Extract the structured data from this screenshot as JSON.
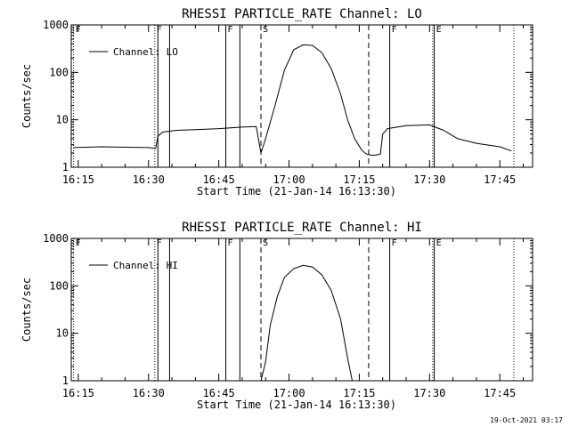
{
  "stamp": "19-Oct-2021 03:17",
  "chart_data": [
    {
      "type": "line",
      "title": "RHESSI PARTICLE_RATE Channel: LO",
      "xlabel": "Start Time (21-Jan-14 16:13:30)",
      "ylabel": "Counts/sec",
      "yscale": "log",
      "ylim": [
        1,
        1000
      ],
      "xlim": [
        "16:13:30",
        "17:52:00"
      ],
      "xticks": [
        "16:15",
        "16:30",
        "16:45",
        "17:00",
        "17:15",
        "17:30",
        "17:45"
      ],
      "yticks": [
        "1",
        "10",
        "100",
        "1000"
      ],
      "legend": "Channel: LO",
      "legend_position": "top-left",
      "flags": [
        {
          "label": "F",
          "time": "16:14:00",
          "style": "dotted"
        },
        {
          "label": "F",
          "time": "16:31:20",
          "style": "dotted"
        },
        {
          "label": "",
          "time": "16:32:00",
          "style": "solid"
        },
        {
          "label": "",
          "time": "16:34:30",
          "style": "solid"
        },
        {
          "label": "F",
          "time": "16:46:30",
          "style": "solid"
        },
        {
          "label": "",
          "time": "16:49:30",
          "style": "solid"
        },
        {
          "label": "S",
          "time": "16:54:00",
          "style": "dashed"
        },
        {
          "label": "",
          "time": "17:17:00",
          "style": "dashed"
        },
        {
          "label": "F",
          "time": "17:21:30",
          "style": "solid"
        },
        {
          "label": "E",
          "time": "17:31:00",
          "style": "solid"
        },
        {
          "label": "",
          "time": "17:30:40",
          "style": "dotted"
        },
        {
          "label": "",
          "time": "17:48:00",
          "style": "dotted"
        }
      ],
      "series": [
        {
          "x": [
            "16:14:00",
            "16:20:00",
            "16:30:00",
            "16:31:30",
            "16:32:00",
            "16:33:00",
            "16:36:00",
            "16:40:00",
            "16:45:00",
            "16:50:00",
            "16:53:00",
            "16:54:00",
            "16:55:00",
            "16:57:00",
            "16:59:00",
            "17:01:00",
            "17:03:00",
            "17:05:00",
            "17:07:00",
            "17:09:00",
            "17:11:00",
            "17:12:30",
            "17:14:00",
            "17:15:30",
            "17:16:30",
            "17:17:30",
            "17:18:30",
            "17:19:30",
            "17:20:00",
            "17:21:00",
            "17:25:00",
            "17:30:00",
            "17:33:00",
            "17:36:00",
            "17:40:00",
            "17:45:00",
            "17:47:30"
          ],
          "y": [
            2.6,
            2.7,
            2.6,
            2.5,
            4.5,
            5.5,
            6.0,
            6.2,
            6.5,
            7.0,
            7.2,
            2.0,
            4.0,
            20,
            110,
            300,
            380,
            370,
            260,
            120,
            35,
            10,
            4.0,
            2.3,
            1.9,
            1.8,
            1.8,
            1.9,
            5,
            6.5,
            7.5,
            7.8,
            6.0,
            4.0,
            3.2,
            2.7,
            2.2
          ]
        }
      ]
    },
    {
      "type": "line",
      "title": "RHESSI PARTICLE_RATE Channel: HI",
      "xlabel": "Start Time (21-Jan-14 16:13:30)",
      "ylabel": "Counts/sec",
      "yscale": "log",
      "ylim": [
        1,
        1000
      ],
      "xlim": [
        "16:13:30",
        "17:52:00"
      ],
      "xticks": [
        "16:15",
        "16:30",
        "16:45",
        "17:00",
        "17:15",
        "17:30",
        "17:45"
      ],
      "yticks": [
        "1",
        "10",
        "100",
        "1000"
      ],
      "legend": "Channel: HI",
      "legend_position": "top-left",
      "flags": [
        {
          "label": "F",
          "time": "16:14:00",
          "style": "dotted"
        },
        {
          "label": "F",
          "time": "16:31:20",
          "style": "dotted"
        },
        {
          "label": "",
          "time": "16:32:00",
          "style": "solid"
        },
        {
          "label": "",
          "time": "16:34:30",
          "style": "solid"
        },
        {
          "label": "F",
          "time": "16:46:30",
          "style": "solid"
        },
        {
          "label": "",
          "time": "16:49:30",
          "style": "solid"
        },
        {
          "label": "S",
          "time": "16:54:00",
          "style": "dashed"
        },
        {
          "label": "",
          "time": "17:17:00",
          "style": "dashed"
        },
        {
          "label": "F",
          "time": "17:21:30",
          "style": "solid"
        },
        {
          "label": "E",
          "time": "17:31:00",
          "style": "solid"
        },
        {
          "label": "",
          "time": "17:30:40",
          "style": "dotted"
        },
        {
          "label": "",
          "time": "17:48:00",
          "style": "dotted"
        }
      ],
      "series": [
        {
          "x": [
            "16:54:00",
            "16:55:00",
            "16:56:00",
            "16:57:30",
            "16:59:00",
            "17:01:00",
            "17:03:00",
            "17:05:00",
            "17:07:00",
            "17:09:00",
            "17:11:00",
            "17:12:30",
            "17:13:30"
          ],
          "y": [
            1.0,
            2.5,
            15,
            60,
            150,
            230,
            270,
            250,
            170,
            80,
            20,
            3,
            1.0
          ]
        }
      ]
    }
  ]
}
